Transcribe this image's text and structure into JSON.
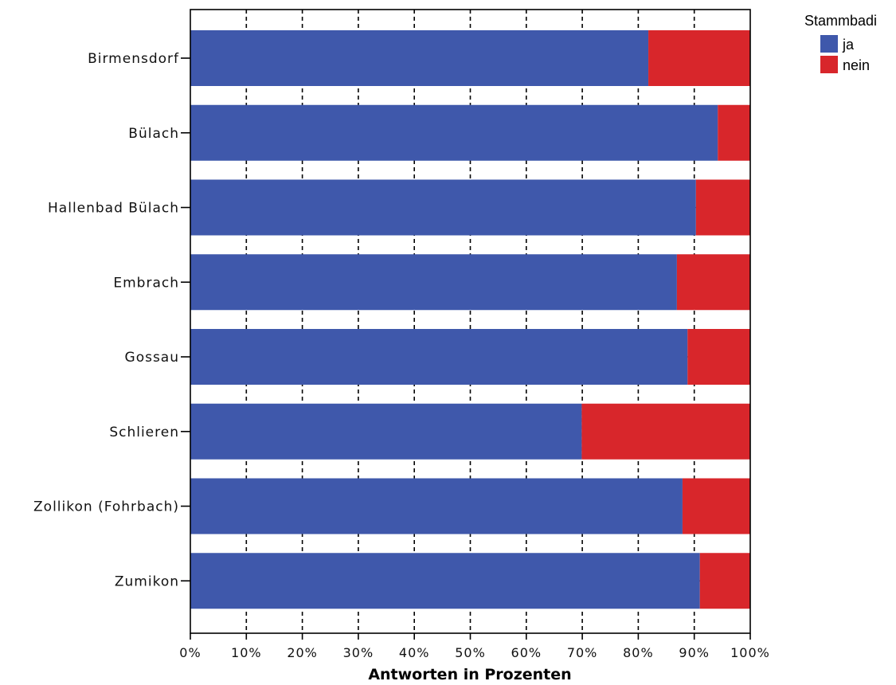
{
  "chart_data": {
    "type": "bar",
    "orientation": "horizontal",
    "stacked": true,
    "categories": [
      "Birmensdorf",
      "Bülach",
      "Hallenbad Bülach",
      "Embrach",
      "Gossau",
      "Schlieren",
      "Zollikon (Fohrbach)",
      "Zumikon"
    ],
    "series": [
      {
        "name": "ja",
        "color": "#3f58ab",
        "values": [
          81.8,
          94.2,
          90.3,
          86.9,
          88.8,
          69.9,
          87.9,
          91.0
        ]
      },
      {
        "name": "nein",
        "color": "#d8262b",
        "values": [
          18.2,
          5.8,
          9.7,
          13.1,
          11.2,
          30.1,
          12.1,
          9.0
        ]
      }
    ],
    "xlim": [
      0,
      100
    ],
    "x_ticks": [
      "0%",
      "10%",
      "20%",
      "30%",
      "40%",
      "50%",
      "60%",
      "70%",
      "80%",
      "90%",
      "100%"
    ],
    "xlabel": "Antworten in Prozenten",
    "ylabel": "",
    "grid": true,
    "legend": {
      "title": "Stammbadi",
      "placement": "top-right"
    }
  }
}
